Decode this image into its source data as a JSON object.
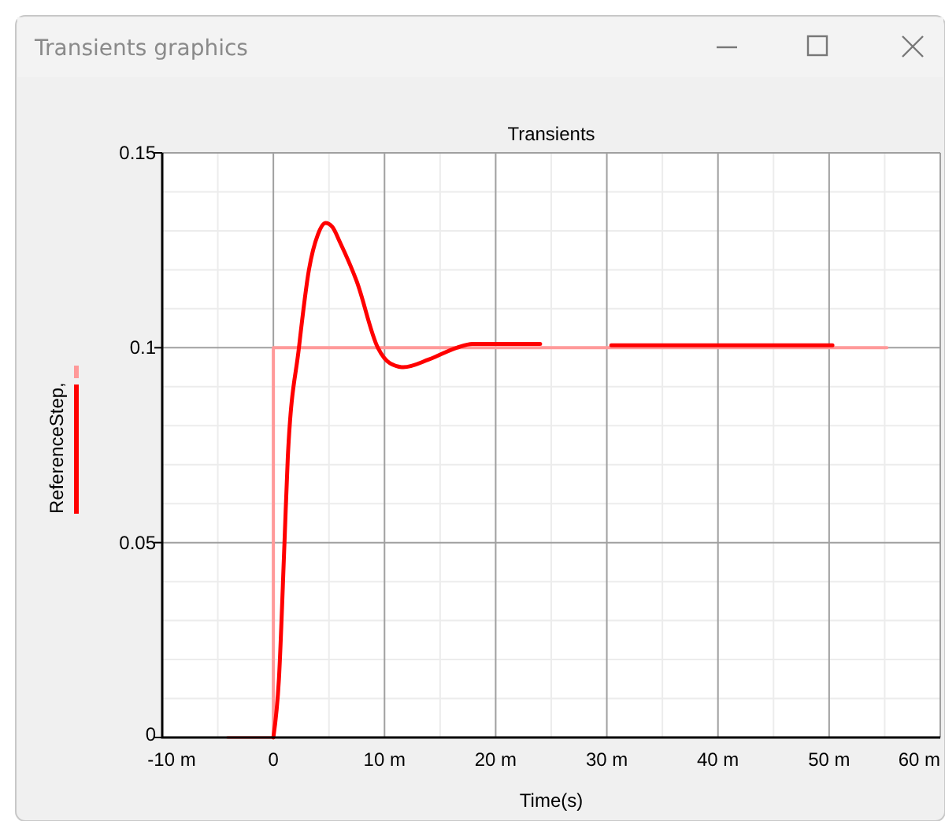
{
  "chart_data": {
    "type": "line",
    "title": "Transients",
    "xlabel": "Time(s)",
    "ylabel": "ReferenceStep,",
    "annotations": [
      "Transients graphics"
    ],
    "xlim": [
      -10,
      60
    ],
    "xticks": [
      {
        "value": -10,
        "label": "-10 m"
      },
      0,
      {
        "value": 10,
        "label": "10 m"
      },
      {
        "value": 20,
        "label": "20 m"
      },
      {
        "value": 30,
        "label": "30 m"
      },
      {
        "value": 40,
        "label": "40 m"
      },
      {
        "value": 50,
        "label": "50 m"
      },
      {
        "value": 60,
        "label": "60 m"
      }
    ],
    "ylim": [
      0,
      0.15
    ],
    "yticks": [
      0,
      0.05,
      0.1,
      0.15
    ],
    "grid": true,
    "series": [
      {
        "color": "#ff9999",
        "x": [
          -4.1,
          0,
          0,
          55.2
        ],
        "values": [
          0,
          0,
          0.1,
          0.1
        ]
      },
      {
        "color": "#ff0000",
        "x": [
          0,
          0.5,
          1,
          1.3,
          2.3,
          3.2,
          4,
          4.7,
          5.3,
          6,
          7.5,
          9.4,
          10.5,
          11.7,
          14,
          16.5,
          17.9,
          24,
          27,
          30.4,
          50.3
        ],
        "values": [
          0,
          0.015,
          0.05,
          0.072,
          0.1,
          0.12,
          0.129,
          0.132,
          0.131,
          0.127,
          0.117,
          0.1,
          0.096,
          0.095,
          0.097,
          0.1,
          0.101,
          0.101,
          null,
          0.1006,
          0.1006
        ]
      }
    ]
  }
}
